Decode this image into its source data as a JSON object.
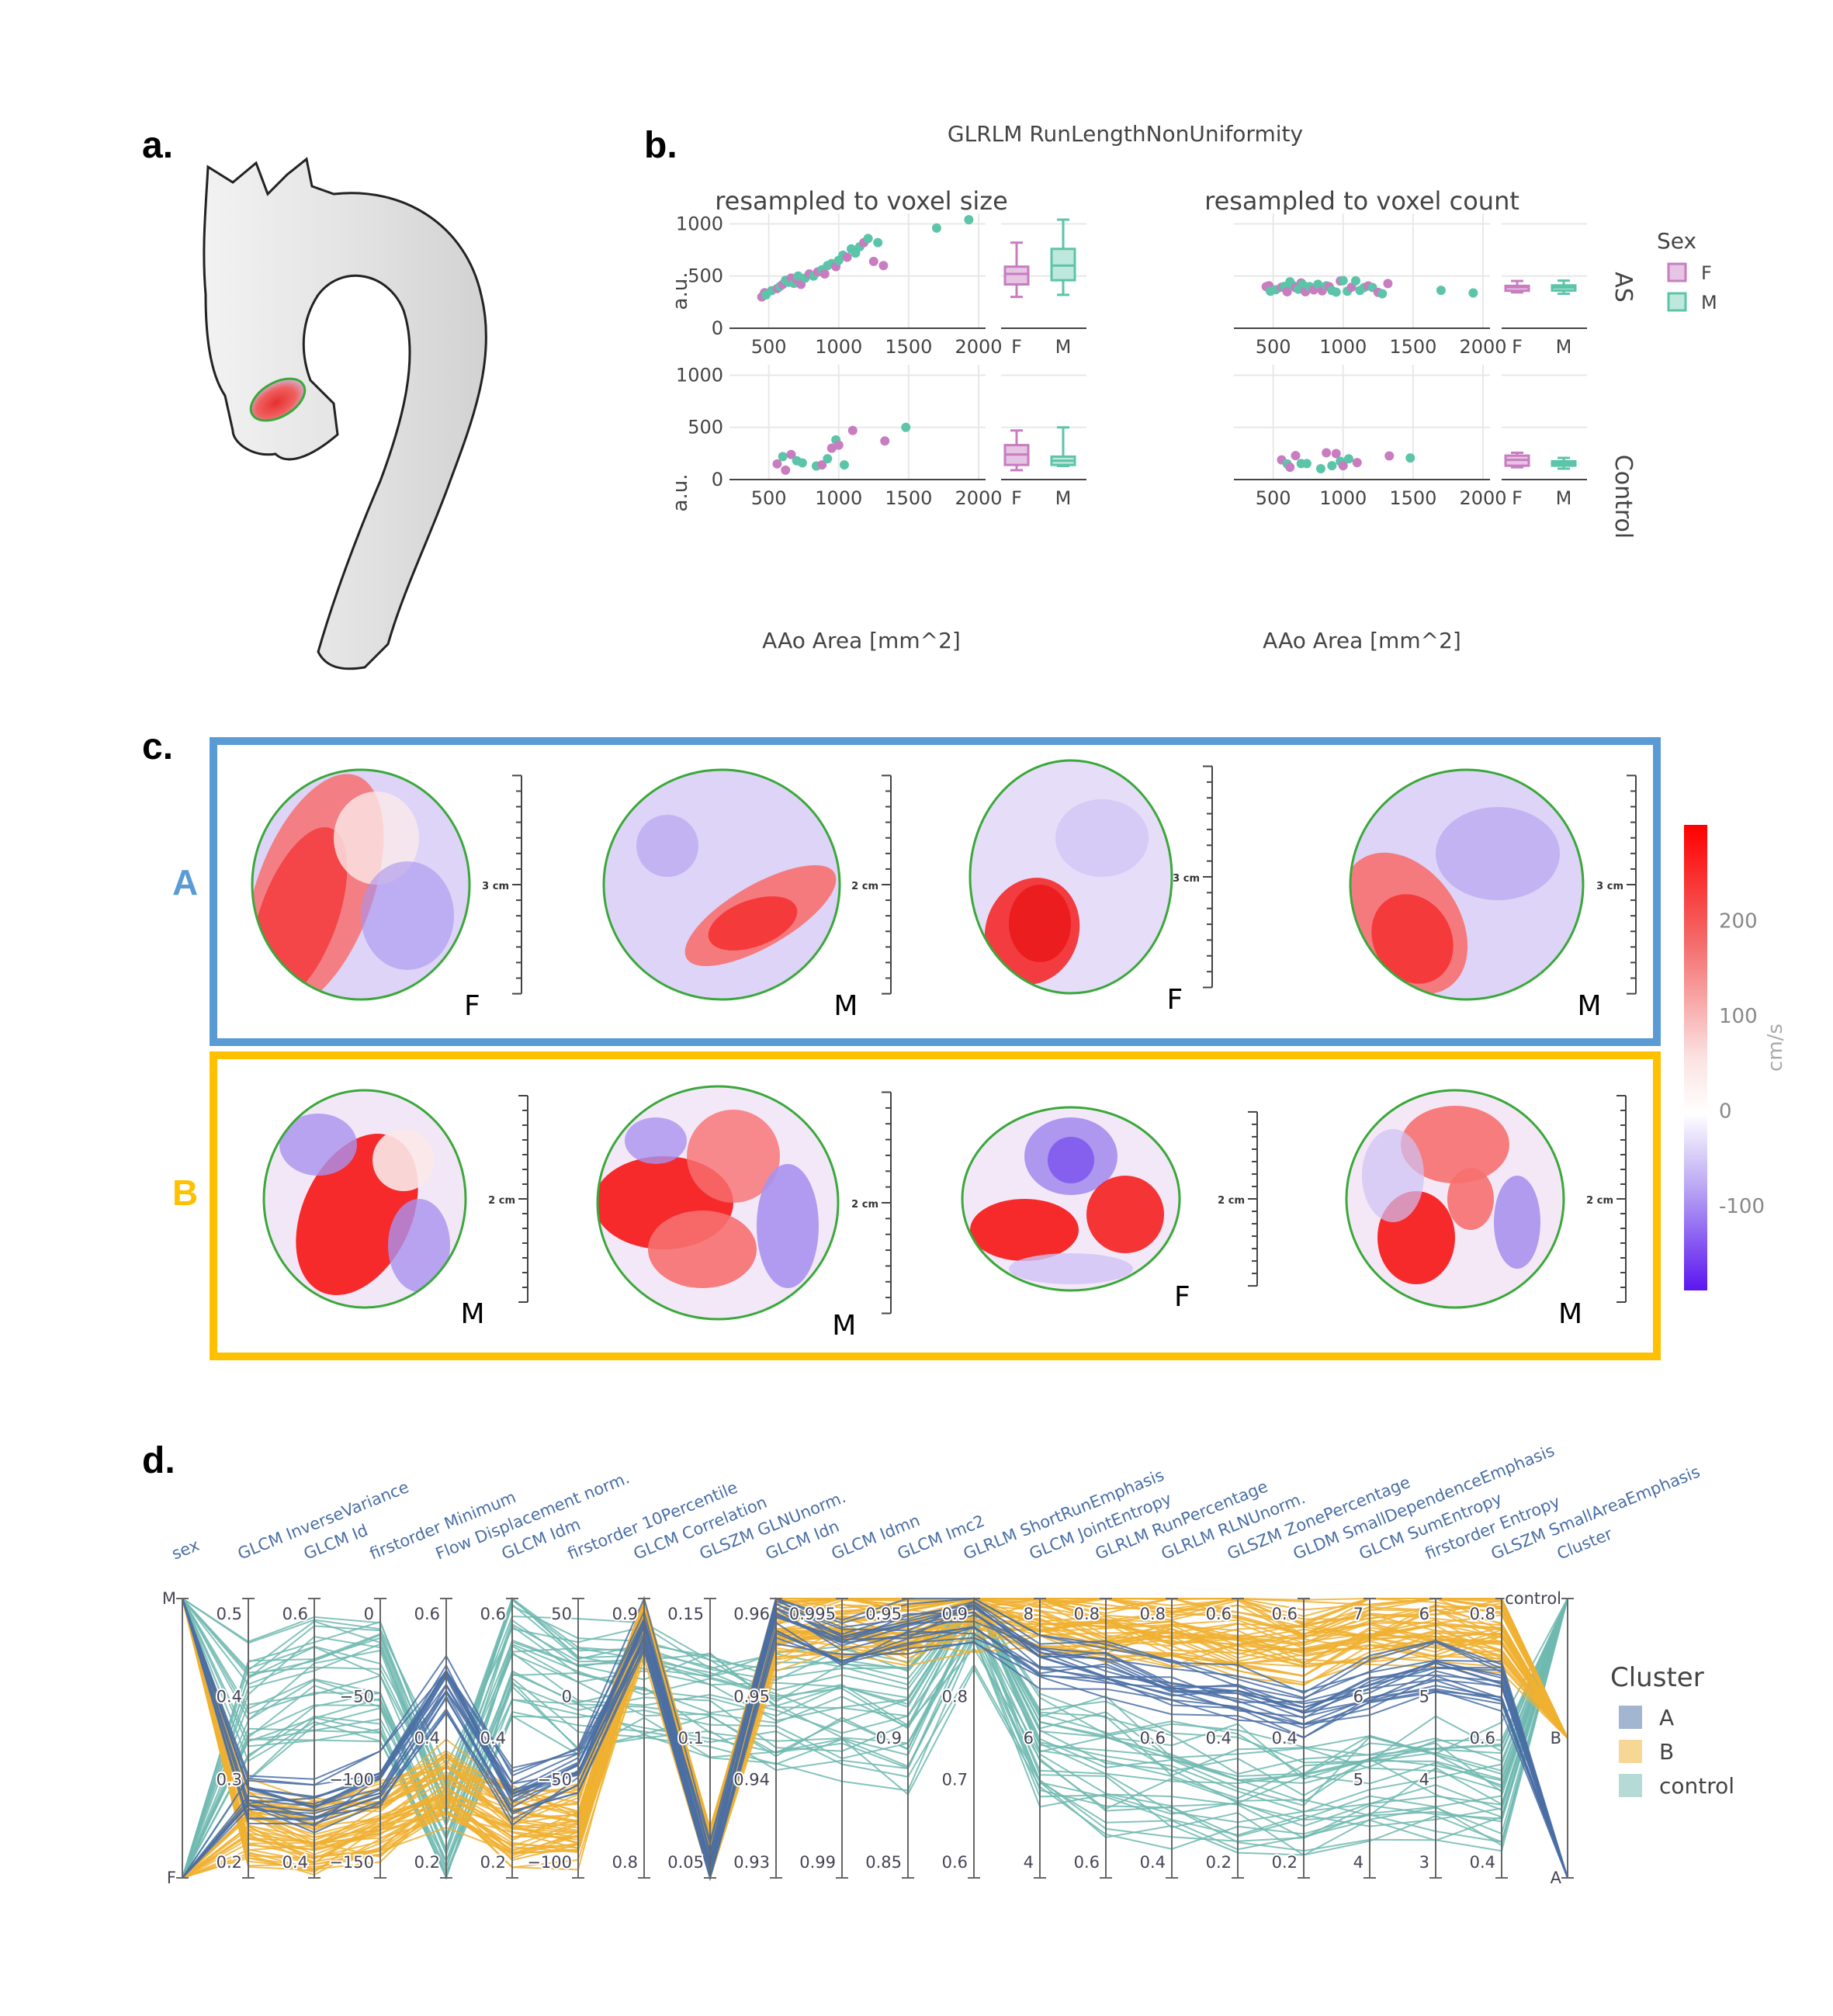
{
  "panel_labels": {
    "a": "a.",
    "b": "b.",
    "c": "c.",
    "d": "d."
  },
  "colors": {
    "female": "#c77dc0",
    "male": "#5cc4a8",
    "cluster_A": "#4a6fa5",
    "cluster_B": "#f0b030",
    "cluster_control": "#6fb9b0",
    "box_A": "#5b9bd5",
    "box_B": "#ffc000",
    "grid": "#e8e8e8"
  },
  "panel_b": {
    "title": "GLRLM RunLengthNonUniformity",
    "col_titles": [
      "resampled to voxel size",
      "resampled to voxel count"
    ],
    "row_labels": [
      "AS",
      "Control"
    ],
    "ylabel": "a.u.",
    "xlabel": "AAo Area [mm^2]",
    "legend_title": "Sex",
    "legend": [
      "F",
      "M"
    ],
    "x_ticks": [
      "500",
      "1000",
      "1500",
      "2000"
    ],
    "box_ticks": [
      "F",
      "M"
    ],
    "y_ticks_AS": [
      "0",
      "500",
      "1000"
    ],
    "y_ticks_control": [
      "0",
      "500",
      "1000"
    ]
  },
  "panel_c": {
    "cluster_labels": [
      "A",
      "B"
    ],
    "colorbar_unit": "cm/s",
    "colorbar_ticks": [
      "200",
      "100",
      "0",
      "-100"
    ],
    "colorbar_range": [
      -190,
      300
    ],
    "row_A": [
      {
        "sex": "F",
        "scale": "3 cm"
      },
      {
        "sex": "M",
        "scale": "2 cm"
      },
      {
        "sex": "F",
        "scale": "3 cm"
      },
      {
        "sex": "M",
        "scale": "3 cm"
      }
    ],
    "row_B": [
      {
        "sex": "M",
        "scale": "2 cm"
      },
      {
        "sex": "M",
        "scale": "2 cm"
      },
      {
        "sex": "F",
        "scale": "2 cm"
      },
      {
        "sex": "M",
        "scale": "2 cm"
      }
    ]
  },
  "chart_data": {
    "type": "parallel_coordinates",
    "axes": [
      {
        "name": "sex",
        "ticks": [
          "F",
          "M"
        ]
      },
      {
        "name": "GLCM InverseVariance",
        "ticks": [
          "0.2",
          "0.3",
          "0.4",
          "0.5"
        ]
      },
      {
        "name": "GLCM Id",
        "ticks": [
          "0.4",
          "0.6"
        ]
      },
      {
        "name": "firstorder Minimum",
        "ticks": [
          "−150",
          "−100",
          "−50",
          "0"
        ]
      },
      {
        "name": "Flow Displacement norm.",
        "ticks": [
          "0.2",
          "0.4",
          "0.6"
        ]
      },
      {
        "name": "GLCM Idm",
        "ticks": [
          "0.2",
          "0.4",
          "0.6"
        ]
      },
      {
        "name": "firstorder 10Percentile",
        "ticks": [
          "−100",
          "−50",
          "0",
          "50"
        ]
      },
      {
        "name": "GLCM Correlation",
        "ticks": [
          "0.8",
          "0.9"
        ]
      },
      {
        "name": "GLSZM GLNUnorm.",
        "ticks": [
          "0.05",
          "0.1",
          "0.15"
        ]
      },
      {
        "name": "GLCM Idn",
        "ticks": [
          "0.93",
          "0.94",
          "0.95",
          "0.96"
        ]
      },
      {
        "name": "GLCM Idmn",
        "ticks": [
          "0.99",
          "0.995"
        ]
      },
      {
        "name": "GLCM Imc2",
        "ticks": [
          "0.85",
          "0.9",
          "0.95"
        ]
      },
      {
        "name": "GLRLM ShortRunEmphasis",
        "ticks": [
          "0.6",
          "0.7",
          "0.8",
          "0.9"
        ]
      },
      {
        "name": "GLCM JointEntropy",
        "ticks": [
          "4",
          "6",
          "8"
        ]
      },
      {
        "name": "GLRLM RunPercentage",
        "ticks": [
          "0.6",
          "0.8"
        ]
      },
      {
        "name": "GLRLM RLNUnorm.",
        "ticks": [
          "0.4",
          "0.6",
          "0.8"
        ]
      },
      {
        "name": "GLSZM ZonePercentage",
        "ticks": [
          "0.2",
          "0.4",
          "0.6"
        ]
      },
      {
        "name": "GLDM SmallDependenceEmphasis",
        "ticks": [
          "0.2",
          "0.4",
          "0.6"
        ]
      },
      {
        "name": "GLCM SumEntropy",
        "ticks": [
          "4",
          "5",
          "6",
          "7"
        ]
      },
      {
        "name": "firstorder Entropy",
        "ticks": [
          "3",
          "4",
          "5",
          "6"
        ]
      },
      {
        "name": "GLSZM SmallAreaEmphasis",
        "ticks": [
          "0.4",
          "0.6",
          "0.8"
        ]
      },
      {
        "name": "Cluster",
        "ticks": [
          "A",
          "B",
          "control"
        ]
      }
    ],
    "legend_title": "Cluster",
    "series": [
      {
        "name": "A",
        "count": 20
      },
      {
        "name": "B",
        "count": 50
      },
      {
        "name": "control",
        "count": 30
      }
    ]
  }
}
